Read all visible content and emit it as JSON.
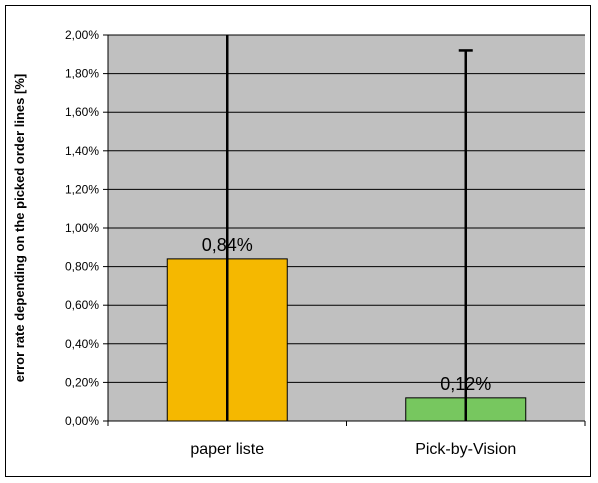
{
  "chart_data": {
    "type": "bar",
    "title": "",
    "xlabel": "",
    "ylabel": "error rate depending on the picked order lines [%]",
    "categories": [
      "paper liste",
      "Pick-by-Vision"
    ],
    "values": [
      0.84,
      0.12
    ],
    "data_labels": [
      "0,84%",
      "0,12%"
    ],
    "error_upper": [
      2.0,
      1.92
    ],
    "error_lower": [
      0.0,
      0.0
    ],
    "ylim": [
      0,
      2.0
    ],
    "y_ticks": [
      0,
      0.2,
      0.4,
      0.6,
      0.8,
      1.0,
      1.2,
      1.4,
      1.6,
      1.8,
      2.0
    ],
    "y_tick_labels": [
      "0,00%",
      "0,20%",
      "0,40%",
      "0,60%",
      "0,80%",
      "1,00%",
      "1,20%",
      "1,40%",
      "1,60%",
      "1,80%",
      "2,00%"
    ],
    "grid": true,
    "legend": "none",
    "colors": {
      "plot_background": "#c0c0c0",
      "bars": [
        "#f5b800",
        "#77c75f"
      ],
      "bar_edge": "#000000",
      "error_bar": "#000000",
      "gridline": "#000000"
    }
  }
}
